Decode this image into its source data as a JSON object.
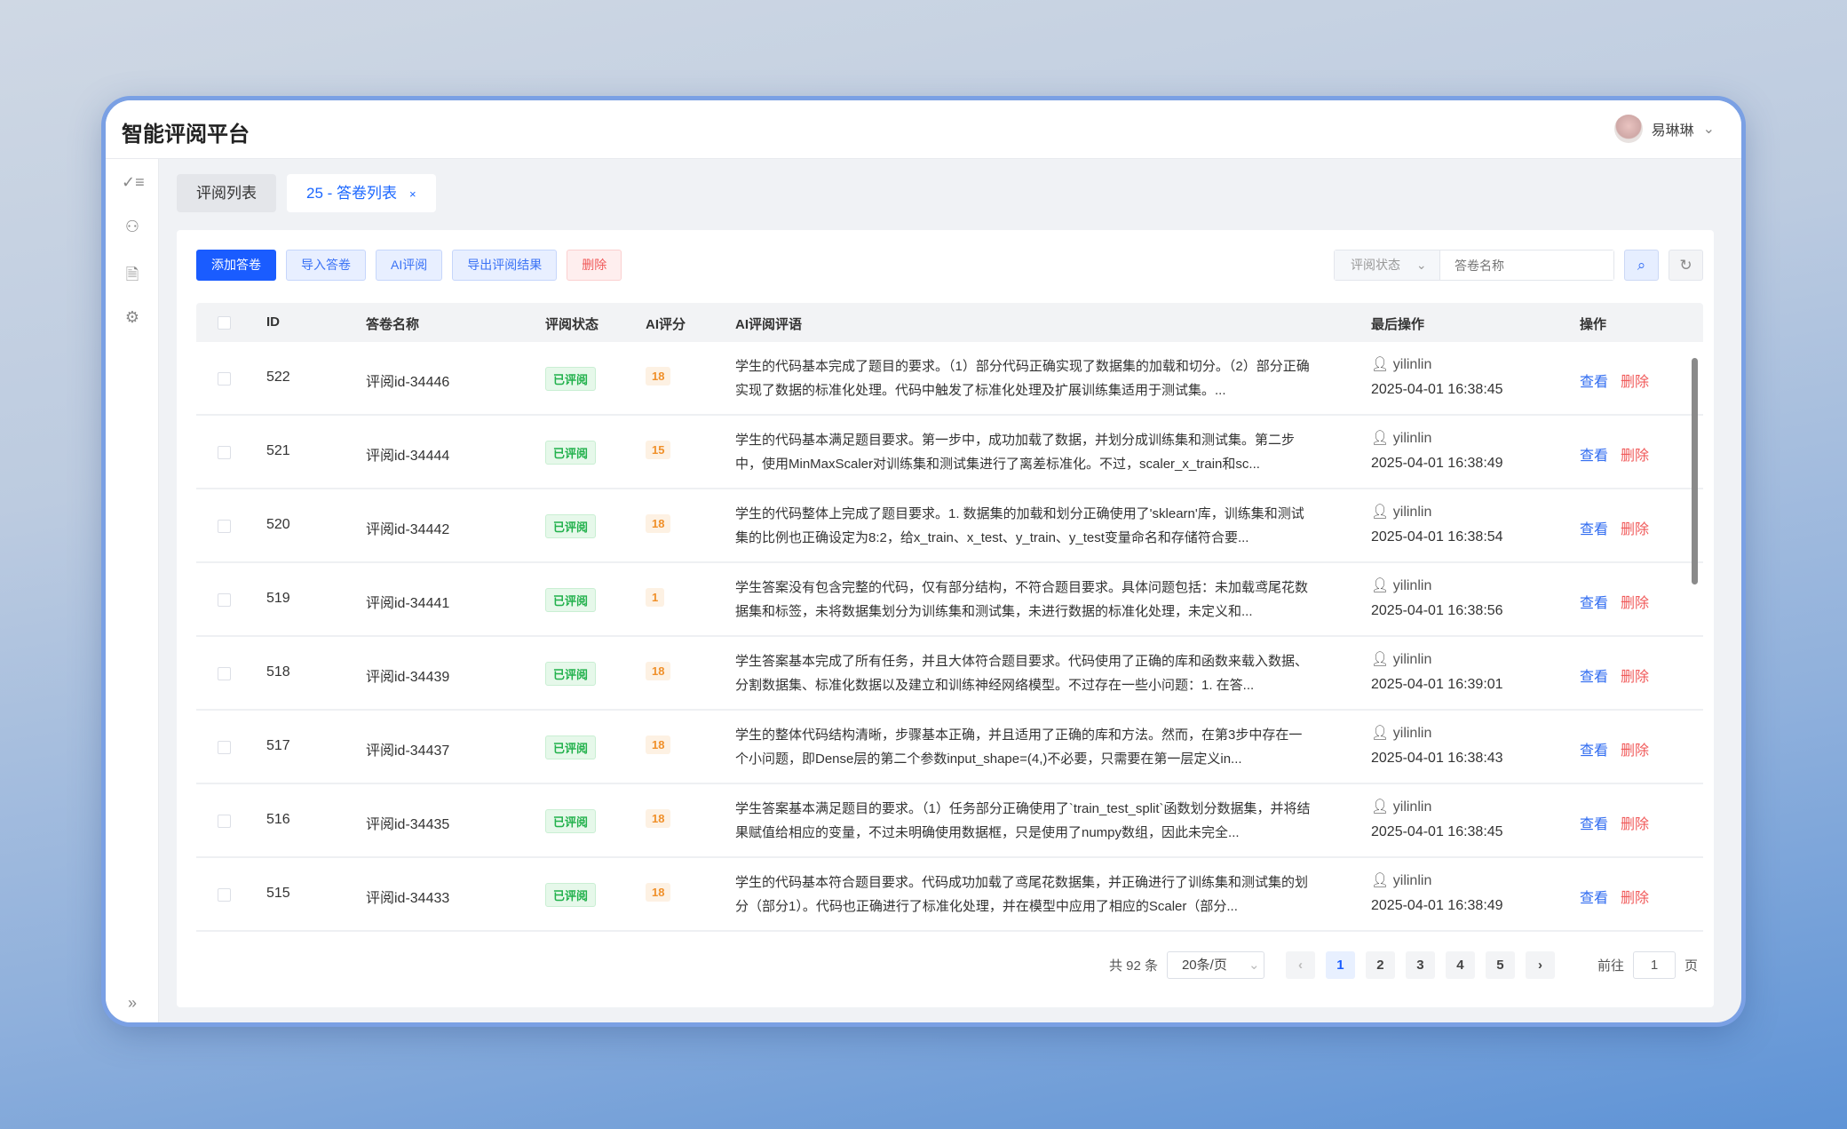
{
  "app": {
    "title": "智能评阅平台",
    "user": "易琳琳"
  },
  "sidebar": {
    "icons": [
      "checklist-icon",
      "user-icon",
      "document-check-icon",
      "gear-icon"
    ],
    "collapse": "»"
  },
  "tabs": [
    {
      "label": "评阅列表",
      "active": false
    },
    {
      "label": "25 - 答卷列表",
      "active": true,
      "close": "×"
    }
  ],
  "toolbar": {
    "add": "添加答卷",
    "import": "导入答卷",
    "ai": "AI评阅",
    "export": "导出评阅结果",
    "delete": "删除"
  },
  "search": {
    "status_placeholder": "评阅状态",
    "name_placeholder": "答卷名称"
  },
  "table": {
    "headers": {
      "id": "ID",
      "name": "答卷名称",
      "status": "评阅状态",
      "score": "AI评分",
      "comment": "AI评阅评语",
      "last": "最后操作",
      "ops": "操作"
    },
    "view": "查看",
    "del": "删除",
    "rows": [
      {
        "id": "522",
        "name": "评阅id-34446",
        "status": "已评阅",
        "score": "18",
        "comment": "学生的代码基本完成了题目的要求。（1）部分代码正确实现了数据集的加载和切分。（2）部分正确实现了数据的标准化处理。代码中触发了标准化处理及扩展训练集适用于测试集。...",
        "user": "yilinlin",
        "time": "2025-04-01 16:38:45"
      },
      {
        "id": "521",
        "name": "评阅id-34444",
        "status": "已评阅",
        "score": "15",
        "comment": "学生的代码基本满足题目要求。第一步中，成功加载了数据，并划分成训练集和测试集。第二步中，使用MinMaxScaler对训练集和测试集进行了离差标准化。不过，scaler_x_train和sc...",
        "user": "yilinlin",
        "time": "2025-04-01 16:38:49"
      },
      {
        "id": "520",
        "name": "评阅id-34442",
        "status": "已评阅",
        "score": "18",
        "comment": "学生的代码整体上完成了题目要求。1. 数据集的加载和划分正确使用了'sklearn'库，训练集和测试集的比例也正确设定为8:2，给x_train、x_test、y_train、y_test变量命名和存储符合要...",
        "user": "yilinlin",
        "time": "2025-04-01 16:38:54"
      },
      {
        "id": "519",
        "name": "评阅id-34441",
        "status": "已评阅",
        "score": "1",
        "comment": "学生答案没有包含完整的代码，仅有部分结构，不符合题目要求。具体问题包括：未加载鸢尾花数据集和标签，未将数据集划分为训练集和测试集，未进行数据的标准化处理，未定义和...",
        "user": "yilinlin",
        "time": "2025-04-01 16:38:56"
      },
      {
        "id": "518",
        "name": "评阅id-34439",
        "status": "已评阅",
        "score": "18",
        "comment": "学生答案基本完成了所有任务，并且大体符合题目要求。代码使用了正确的库和函数来载入数据、分割数据集、标准化数据以及建立和训练神经网络模型。不过存在一些小问题：1. 在答...",
        "user": "yilinlin",
        "time": "2025-04-01 16:39:01"
      },
      {
        "id": "517",
        "name": "评阅id-34437",
        "status": "已评阅",
        "score": "18",
        "comment": "学生的整体代码结构清晰，步骤基本正确，并且适用了正确的库和方法。然而，在第3步中存在一个小问题，即Dense层的第二个参数input_shape=(4,)不必要，只需要在第一层定义in...",
        "user": "yilinlin",
        "time": "2025-04-01 16:38:43"
      },
      {
        "id": "516",
        "name": "评阅id-34435",
        "status": "已评阅",
        "score": "18",
        "comment": "学生答案基本满足题目的要求。（1）任务部分正确使用了`train_test_split`函数划分数据集，并将结果赋值给相应的变量，不过未明确使用数据框，只是使用了numpy数组，因此未完全...",
        "user": "yilinlin",
        "time": "2025-04-01 16:38:45"
      },
      {
        "id": "515",
        "name": "评阅id-34433",
        "status": "已评阅",
        "score": "18",
        "comment": "学生的代码基本符合题目要求。代码成功加载了鸢尾花数据集，并正确进行了训练集和测试集的划分（部分1）。代码也正确进行了标准化处理，并在模型中应用了相应的Scaler（部分...",
        "user": "yilinlin",
        "time": "2025-04-01 16:38:49"
      }
    ]
  },
  "pagination": {
    "total": "共 92 条",
    "page_size": "20条/页",
    "pages": [
      "1",
      "2",
      "3",
      "4",
      "5"
    ],
    "current": "1",
    "goto_label": "前往",
    "goto_value": "1",
    "page_suffix": "页"
  },
  "colors": {
    "primary": "#1a5cff",
    "danger": "#f05a5a",
    "success": "#22b14c",
    "warning": "#f0902a"
  }
}
